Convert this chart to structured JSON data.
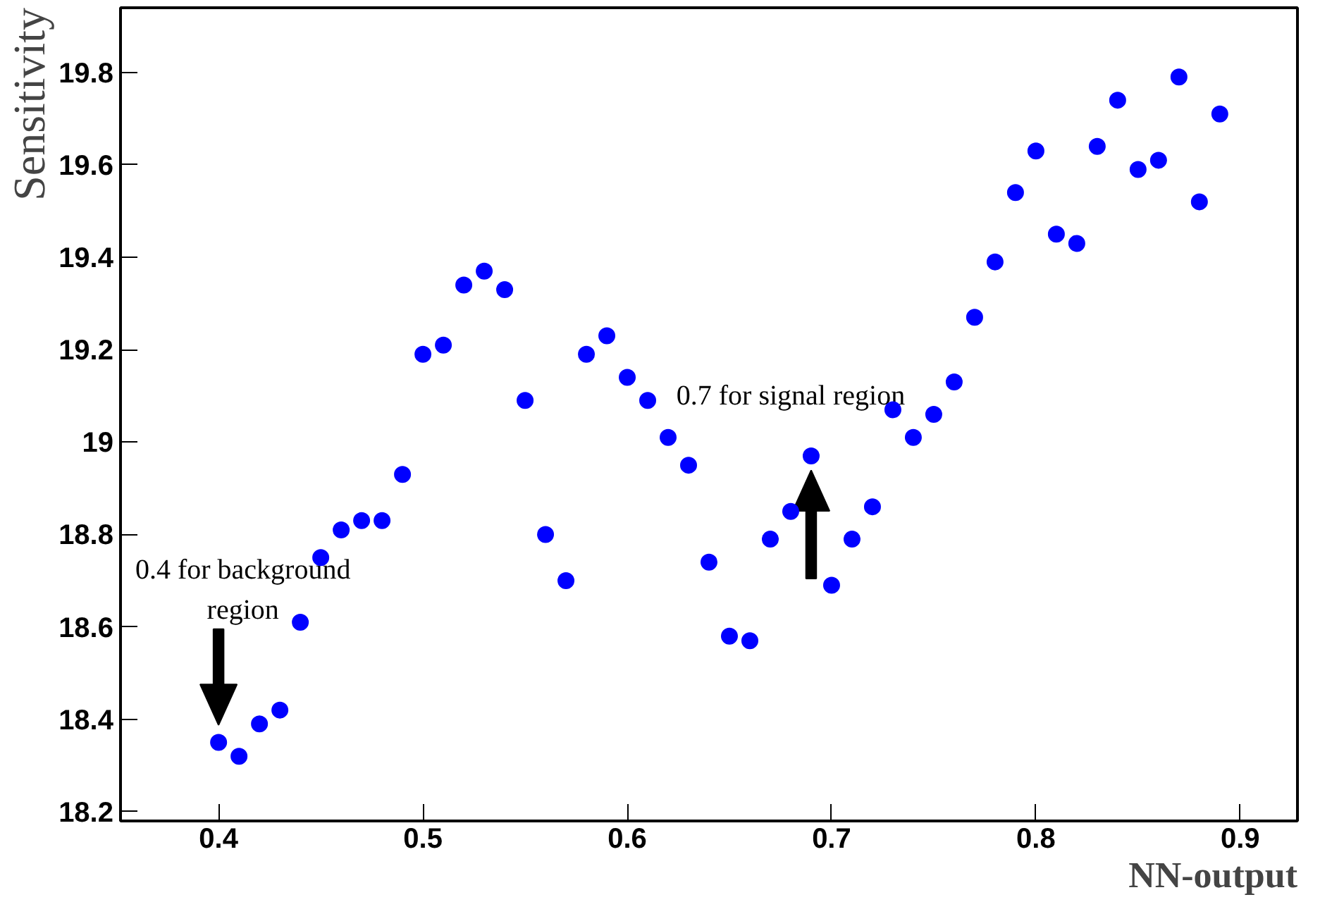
{
  "chart_data": {
    "type": "scatter",
    "xlabel": "NN-output",
    "ylabel": "Sensitivity",
    "x": [
      0.4,
      0.41,
      0.42,
      0.43,
      0.44,
      0.45,
      0.46,
      0.47,
      0.48,
      0.49,
      0.5,
      0.51,
      0.52,
      0.53,
      0.54,
      0.55,
      0.56,
      0.57,
      0.58,
      0.59,
      0.6,
      0.61,
      0.62,
      0.63,
      0.64,
      0.65,
      0.66,
      0.67,
      0.68,
      0.69,
      0.7,
      0.71,
      0.72,
      0.73,
      0.74,
      0.75,
      0.76,
      0.77,
      0.78,
      0.79,
      0.8,
      0.81,
      0.82,
      0.83,
      0.84,
      0.85,
      0.86,
      0.87,
      0.88,
      0.89
    ],
    "series": [
      {
        "color": "#0000ff",
        "values": [
          18.35,
          18.32,
          18.39,
          18.42,
          18.61,
          18.75,
          18.81,
          18.83,
          18.83,
          18.93,
          19.19,
          19.21,
          19.34,
          19.37,
          19.33,
          19.09,
          18.8,
          18.7,
          19.19,
          19.23,
          19.14,
          19.09,
          19.01,
          18.95,
          18.74,
          18.58,
          18.57,
          18.79,
          18.85,
          18.97,
          18.69,
          18.79,
          18.86,
          19.07,
          19.01,
          19.06,
          19.13,
          19.27,
          19.39,
          19.54,
          19.63,
          19.45,
          19.43,
          19.64,
          19.74,
          19.59,
          19.61,
          19.79,
          19.52,
          19.71
        ]
      }
    ],
    "marker": "circle",
    "xlim": [
      0.352,
      0.928
    ],
    "ylim": [
      18.18,
      19.94
    ],
    "xticks": [
      0.4,
      0.5,
      0.6,
      0.7,
      0.8,
      0.9
    ],
    "yticks": [
      18.2,
      18.4,
      18.6,
      18.8,
      19,
      19.2,
      19.4,
      19.6,
      19.8
    ],
    "grid": false,
    "annotations": [
      "0.4 for background\nregion",
      {
        "text": "0.7 for signal region",
        "x": 0.69,
        "y": 18.96
      }
    ]
  }
}
